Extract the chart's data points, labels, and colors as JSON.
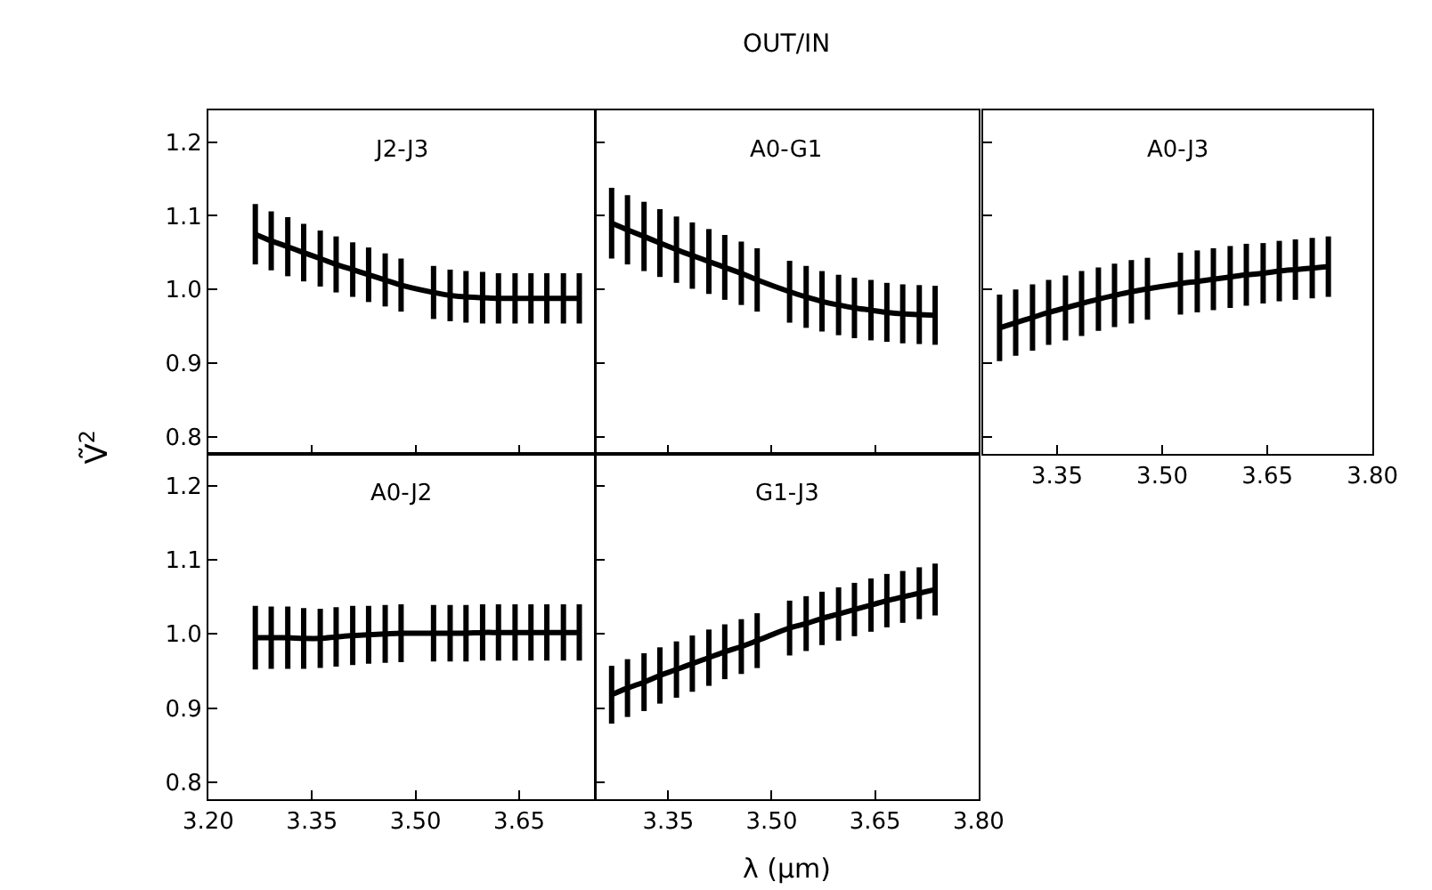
{
  "chart_data": [
    {
      "type": "line",
      "title": "J2-J3",
      "ylabel": "Ṽ$^{2}$",
      "annotations": [
        "OUT/IN"
      ],
      "tick_labels": "y",
      "grid": false,
      "marker": "none",
      "line_style": "solid",
      "x": [
        3.268,
        3.291,
        3.315,
        3.338,
        3.362,
        3.385,
        3.409,
        3.432,
        3.456,
        3.479,
        3.526,
        3.55,
        3.573,
        3.597,
        3.62,
        3.644,
        3.667,
        3.69,
        3.714,
        3.737
      ],
      "series": [
        {
          "color": "#000000",
          "values": [
            1.075,
            1.066,
            1.058,
            1.05,
            1.042,
            1.034,
            1.027,
            1.02,
            1.013,
            1.006,
            0.996,
            0.992,
            0.99,
            0.989,
            0.988,
            0.988,
            0.988,
            0.988,
            0.988,
            0.988
          ],
          "errors": [
            0.041,
            0.04,
            0.04,
            0.039,
            0.038,
            0.038,
            0.037,
            0.037,
            0.036,
            0.036,
            0.036,
            0.035,
            0.035,
            0.035,
            0.034,
            0.034,
            0.034,
            0.034,
            0.034,
            0.034
          ]
        }
      ],
      "xlim": [
        3.2,
        3.76
      ],
      "xticks": [
        {
          "value": 3.2,
          "label": null
        },
        {
          "value": 3.35,
          "label": null
        },
        {
          "value": 3.5,
          "label": null
        },
        {
          "value": 3.65,
          "label": null
        }
      ],
      "ylim": [
        0.777,
        1.243
      ],
      "yticks": [
        0.8,
        0.9,
        {
          "value": 1.0,
          "label": "1.0"
        },
        1.1,
        1.2
      ]
    },
    {
      "type": "line",
      "title": "A0-G1",
      "tick_labels": false,
      "grid": false,
      "marker": "none",
      "line_style": "solid",
      "x": [
        3.268,
        3.291,
        3.315,
        3.338,
        3.362,
        3.385,
        3.409,
        3.432,
        3.456,
        3.479,
        3.526,
        3.55,
        3.573,
        3.597,
        3.62,
        3.644,
        3.667,
        3.69,
        3.714,
        3.737
      ],
      "series": [
        {
          "color": "#000000",
          "values": [
            1.09,
            1.081,
            1.072,
            1.063,
            1.054,
            1.046,
            1.038,
            1.03,
            1.022,
            1.013,
            0.997,
            0.99,
            0.984,
            0.979,
            0.975,
            0.972,
            0.969,
            0.967,
            0.966,
            0.965
          ],
          "errors": [
            0.048,
            0.047,
            0.047,
            0.046,
            0.045,
            0.045,
            0.044,
            0.044,
            0.043,
            0.043,
            0.042,
            0.042,
            0.041,
            0.041,
            0.041,
            0.041,
            0.04,
            0.04,
            0.04,
            0.04
          ]
        }
      ],
      "xlim": [
        3.245,
        3.8
      ],
      "xticks": [
        {
          "value": 3.35,
          "label": null
        },
        {
          "value": 3.5,
          "label": null
        },
        {
          "value": 3.65,
          "label": null
        },
        {
          "value": 3.8,
          "label": null
        }
      ],
      "ylim": [
        0.777,
        1.243
      ],
      "yticks": [
        {
          "value": 0.8,
          "label": null
        },
        {
          "value": 0.9,
          "label": null
        },
        {
          "value": 1.0,
          "label": null
        },
        {
          "value": 1.1,
          "label": null
        },
        {
          "value": 1.2,
          "label": null
        }
      ]
    },
    {
      "type": "line",
      "title": "A0-J3",
      "tick_labels": "x",
      "grid": false,
      "marker": "none",
      "line_style": "solid",
      "x": [
        3.268,
        3.291,
        3.315,
        3.338,
        3.362,
        3.385,
        3.409,
        3.432,
        3.456,
        3.479,
        3.526,
        3.55,
        3.573,
        3.597,
        3.62,
        3.644,
        3.667,
        3.69,
        3.714,
        3.737
      ],
      "series": [
        {
          "color": "#000000",
          "values": [
            0.948,
            0.955,
            0.962,
            0.969,
            0.975,
            0.981,
            0.987,
            0.992,
            0.997,
            1.001,
            1.008,
            1.011,
            1.014,
            1.017,
            1.02,
            1.022,
            1.025,
            1.027,
            1.029,
            1.031
          ],
          "errors": [
            0.045,
            0.045,
            0.045,
            0.044,
            0.044,
            0.044,
            0.043,
            0.043,
            0.043,
            0.042,
            0.042,
            0.042,
            0.042,
            0.042,
            0.042,
            0.041,
            0.041,
            0.041,
            0.041,
            0.041
          ]
        }
      ],
      "xlim": [
        3.245,
        3.8
      ],
      "xticks": [
        {
          "value": 3.35,
          "label": "3.35"
        },
        {
          "value": 3.5,
          "label": "3.50"
        },
        {
          "value": 3.65,
          "label": "3.65"
        },
        {
          "value": 3.8,
          "label": "3.80"
        }
      ],
      "ylim": [
        0.777,
        1.243
      ],
      "yticks": [
        {
          "value": 0.8,
          "label": null
        },
        {
          "value": 0.9,
          "label": null
        },
        {
          "value": 1.0,
          "label": null
        },
        {
          "value": 1.1,
          "label": null
        },
        {
          "value": 1.2,
          "label": null
        }
      ]
    },
    {
      "type": "line",
      "title": "A0-J2",
      "grid": false,
      "marker": "none",
      "line_style": "solid",
      "x": [
        3.268,
        3.291,
        3.315,
        3.338,
        3.362,
        3.385,
        3.409,
        3.432,
        3.456,
        3.479,
        3.526,
        3.55,
        3.573,
        3.597,
        3.62,
        3.644,
        3.667,
        3.69,
        3.714,
        3.737
      ],
      "series": [
        {
          "color": "#000000",
          "values": [
            0.995,
            0.995,
            0.995,
            0.994,
            0.994,
            0.996,
            0.998,
            0.999,
            1.0,
            1.001,
            1.001,
            1.001,
            1.001,
            1.002,
            1.002,
            1.002,
            1.002,
            1.002,
            1.002,
            1.002
          ],
          "errors": [
            0.043,
            0.042,
            0.042,
            0.041,
            0.04,
            0.04,
            0.04,
            0.039,
            0.039,
            0.039,
            0.038,
            0.038,
            0.038,
            0.038,
            0.038,
            0.038,
            0.038,
            0.038,
            0.038,
            0.038
          ]
        }
      ],
      "xlim": [
        3.2,
        3.76
      ],
      "xticks": [
        {
          "value": 3.2,
          "label": "3.20"
        },
        {
          "value": 3.35,
          "label": "3.35"
        },
        {
          "value": 3.5,
          "label": "3.50"
        },
        {
          "value": 3.65,
          "label": "3.65"
        }
      ],
      "ylim": [
        0.777,
        1.243
      ],
      "yticks": [
        0.8,
        0.9,
        {
          "value": 1.0,
          "label": "1.0"
        },
        1.1,
        1.2
      ]
    },
    {
      "type": "line",
      "title": "G1-J3",
      "xlabel": "λ (μm)",
      "tick_labels": "x",
      "grid": false,
      "marker": "none",
      "line_style": "solid",
      "x": [
        3.268,
        3.291,
        3.315,
        3.338,
        3.362,
        3.385,
        3.409,
        3.432,
        3.456,
        3.479,
        3.526,
        3.55,
        3.573,
        3.597,
        3.62,
        3.644,
        3.667,
        3.69,
        3.714,
        3.737
      ],
      "series": [
        {
          "color": "#000000",
          "values": [
            0.918,
            0.927,
            0.935,
            0.944,
            0.952,
            0.96,
            0.968,
            0.976,
            0.983,
            0.991,
            1.008,
            1.014,
            1.021,
            1.027,
            1.033,
            1.039,
            1.045,
            1.05,
            1.055,
            1.06
          ],
          "errors": [
            0.039,
            0.039,
            0.039,
            0.038,
            0.038,
            0.038,
            0.038,
            0.037,
            0.037,
            0.037,
            0.037,
            0.037,
            0.036,
            0.036,
            0.036,
            0.036,
            0.036,
            0.035,
            0.035,
            0.035
          ]
        }
      ],
      "xlim": [
        3.245,
        3.8
      ],
      "xticks": [
        {
          "value": 3.35,
          "label": "3.35"
        },
        {
          "value": 3.5,
          "label": "3.50"
        },
        {
          "value": 3.65,
          "label": "3.65"
        },
        {
          "value": 3.8,
          "label": "3.80"
        }
      ],
      "ylim": [
        0.777,
        1.243
      ],
      "yticks": [
        {
          "value": 0.8,
          "label": null
        },
        {
          "value": 0.9,
          "label": null
        },
        {
          "value": 1.0,
          "label": null
        },
        {
          "value": 1.1,
          "label": null
        },
        {
          "value": 1.2,
          "label": null
        }
      ]
    }
  ]
}
